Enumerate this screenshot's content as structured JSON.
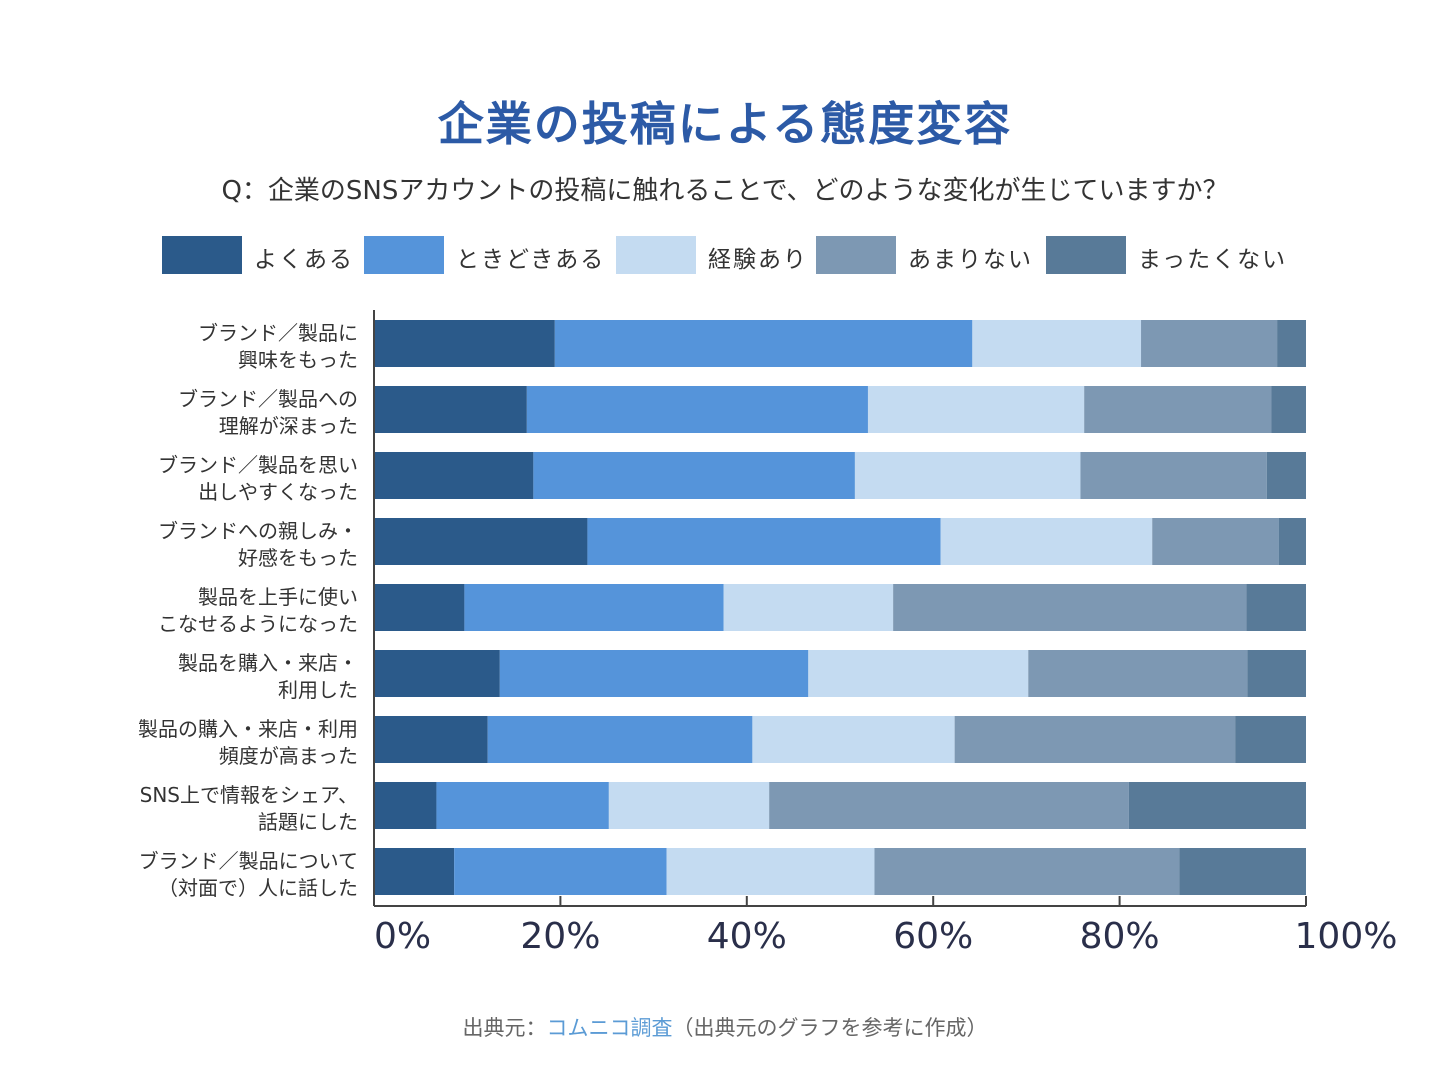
{
  "title": "企業の投稿による態度変容",
  "question": "Q：企業のSNSアカウントの投稿に触れることで、どのような変化が生じていますか？",
  "footer": {
    "prefix": "出典元：",
    "link": "コムニコ調査",
    "suffix": "（出典元のグラフを参考に作成）"
  },
  "colors": {
    "yoku": "#2b5a8a",
    "tokidoki": "#5594da",
    "keiken": "#c4dbf1",
    "amari": "#7d98b3",
    "mattaku": "#587a98"
  },
  "chart_data": {
    "type": "bar",
    "orientation": "horizontal",
    "stacked": true,
    "title": "企業の投稿による態度変容",
    "xlim": [
      0,
      100
    ],
    "xticks": [
      "0%",
      "20%",
      "40%",
      "60%",
      "80%",
      "100%"
    ],
    "legend": "top",
    "categories": [
      [
        "ブランド／製品に",
        "興味をもった"
      ],
      [
        "ブランド／製品への",
        "理解が深まった"
      ],
      [
        "ブランド／製品を思い",
        "出しやすくなった"
      ],
      [
        "ブランドへの親しみ・",
        "好感をもった"
      ],
      [
        "製品を上手に使い",
        "こなせるようになった"
      ],
      [
        "製品を購入・来店・",
        "利用した"
      ],
      [
        "製品の購入・来店・利用",
        "頻度が高まった"
      ],
      [
        "SNS上で情報をシェア、",
        "話題にした"
      ],
      [
        "ブランド／製品について",
        "（対面で）人に話した"
      ]
    ],
    "series": [
      {
        "name": "よくある",
        "color": "#2b5a8a",
        "values": [
          19.4,
          16.4,
          17.1,
          22.9,
          9.7,
          13.5,
          12.2,
          6.7,
          8.6
        ]
      },
      {
        "name": "ときどきある",
        "color": "#5594da",
        "values": [
          44.8,
          36.6,
          34.5,
          37.9,
          27.8,
          33.1,
          28.4,
          18.5,
          22.8
        ]
      },
      {
        "name": "経験あり",
        "color": "#c4dbf1",
        "values": [
          18.1,
          23.2,
          24.2,
          22.7,
          18.2,
          23.6,
          21.7,
          17.2,
          22.3
        ]
      },
      {
        "name": "あまりない",
        "color": "#7d98b3",
        "values": [
          14.6,
          20.1,
          20.0,
          13.6,
          37.9,
          23.5,
          30.1,
          38.6,
          32.7
        ]
      },
      {
        "name": "まったくない",
        "color": "#587a98",
        "values": [
          3.1,
          3.7,
          4.2,
          2.9,
          6.4,
          6.3,
          7.6,
          19.0,
          13.6
        ]
      }
    ]
  }
}
